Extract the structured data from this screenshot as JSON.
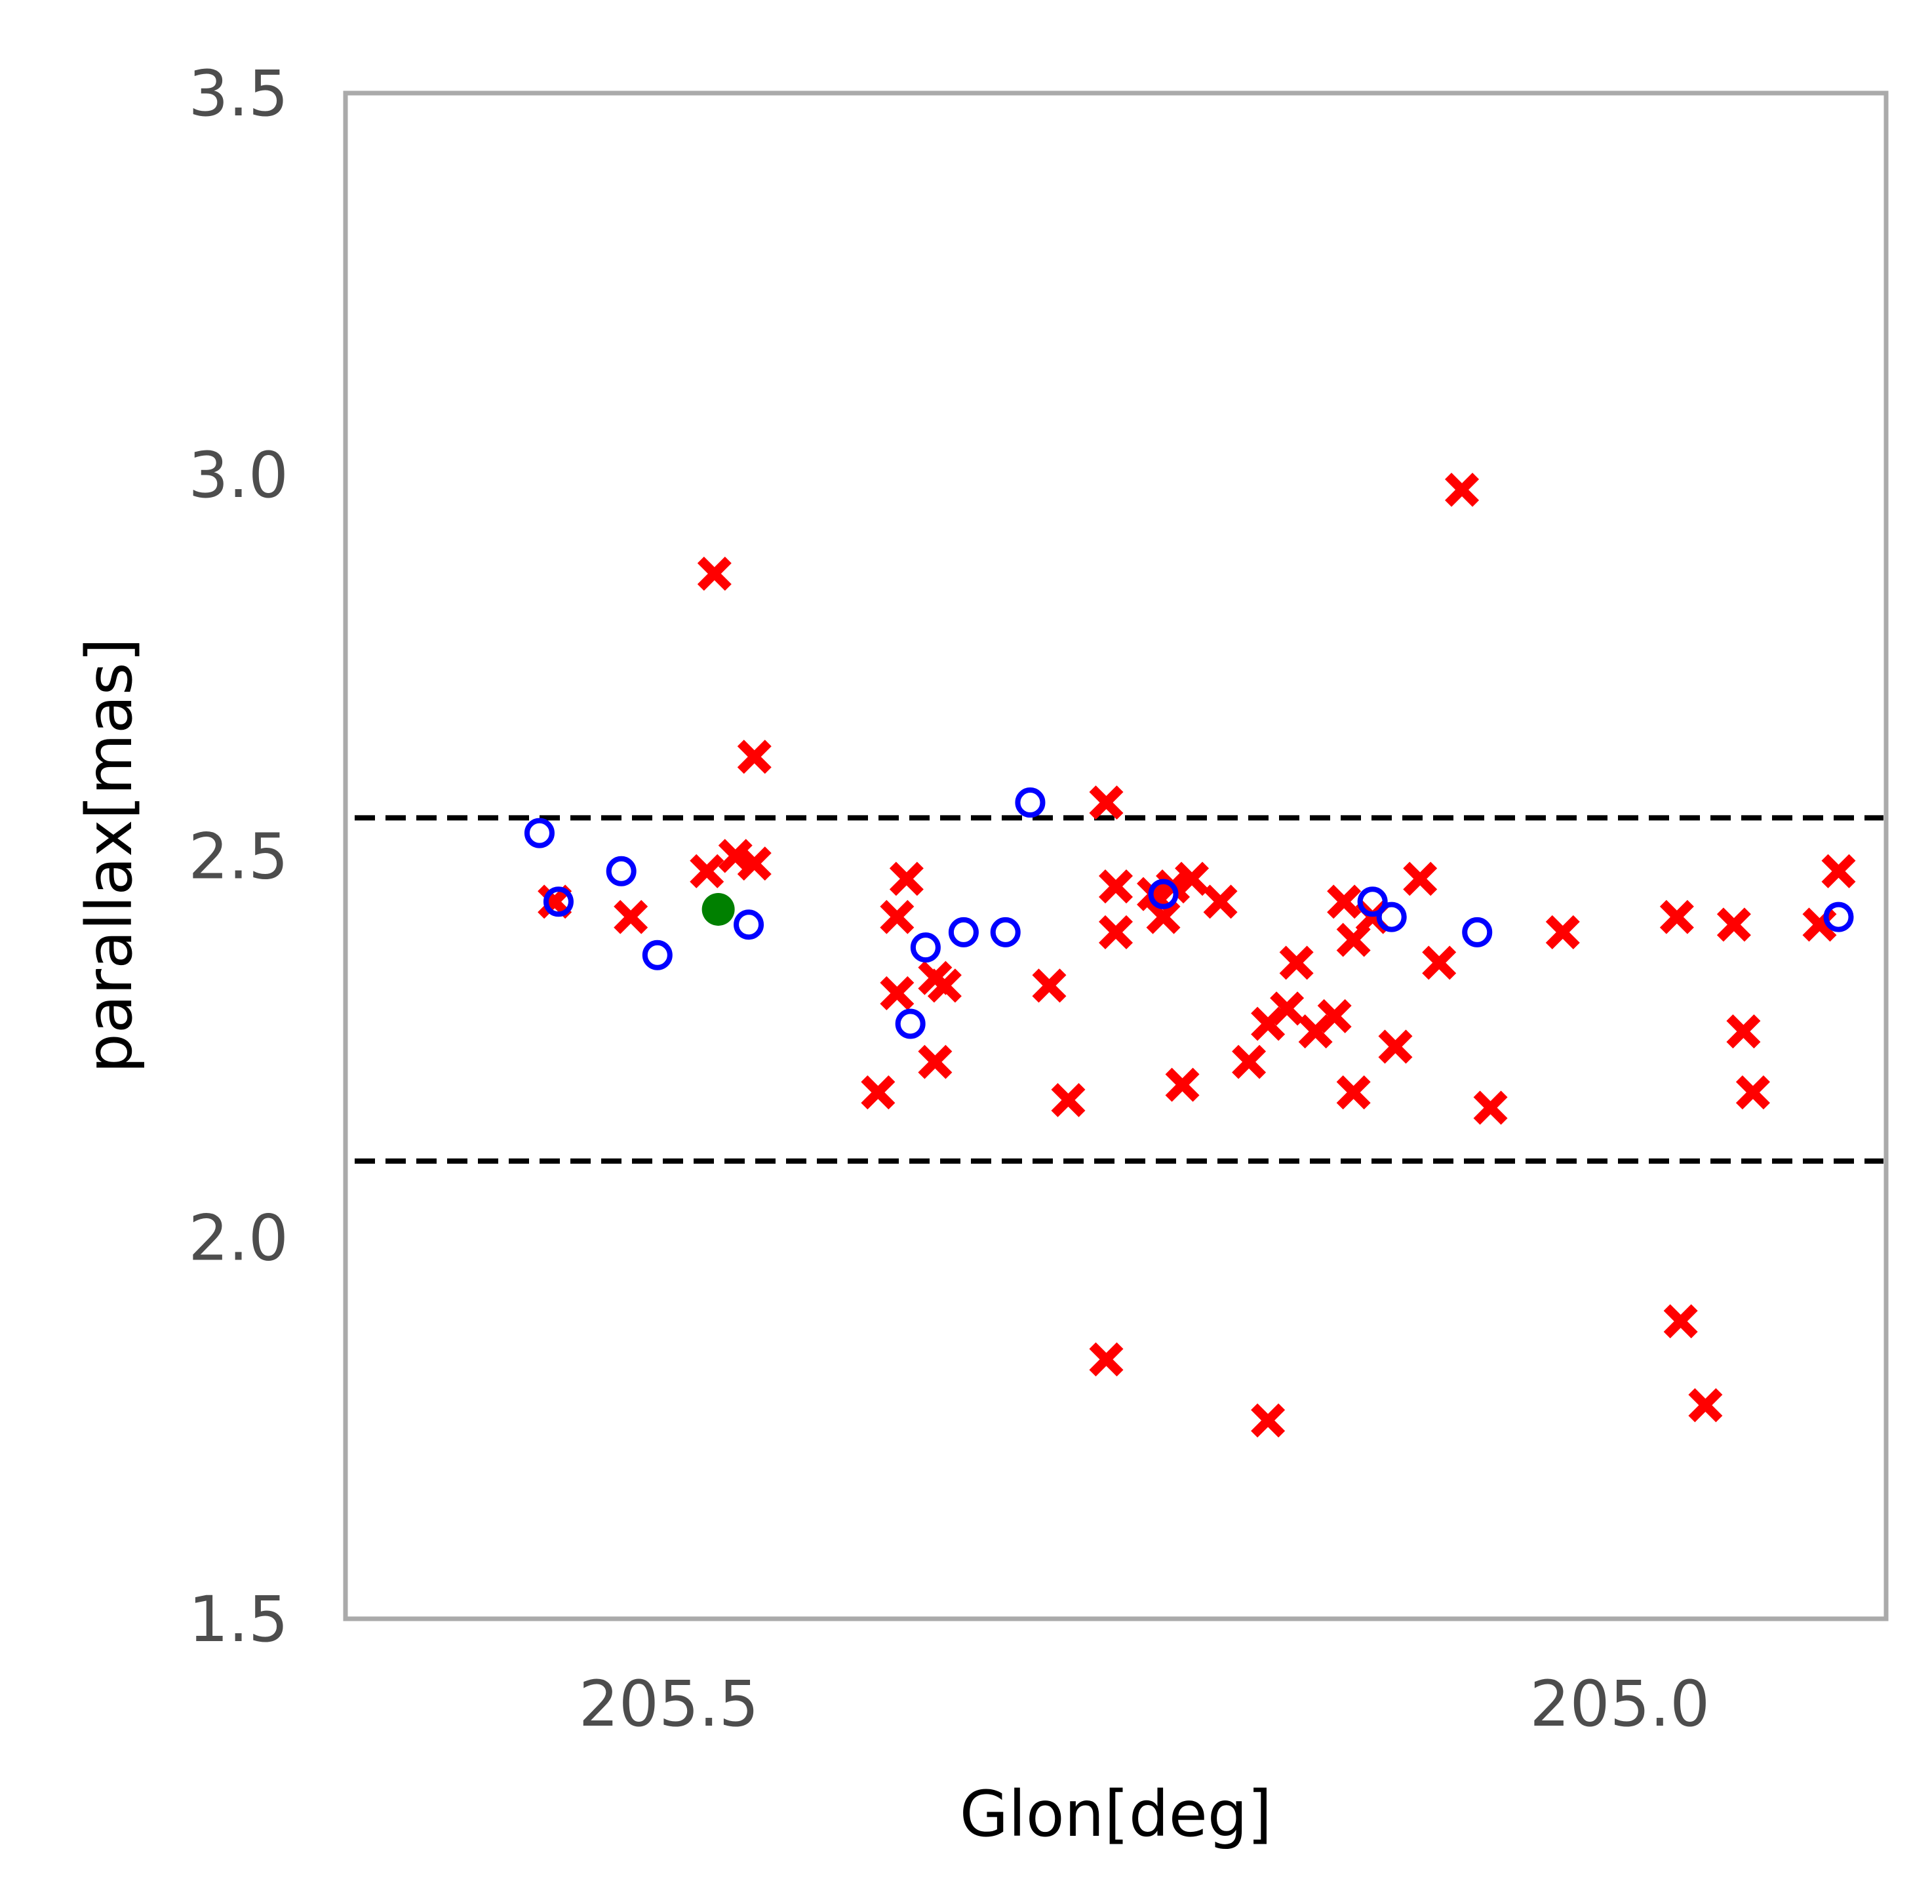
{
  "chart_data": {
    "type": "scatter",
    "title": "",
    "xlabel": "Glon[deg]",
    "ylabel": "parallax[mas]",
    "x_reversed": true,
    "xlim": [
      205.67,
      204.86
    ],
    "ylim": [
      1.5,
      3.5
    ],
    "x_ticks": [
      205.5,
      205.0
    ],
    "x_tick_labels": [
      "205.5",
      "205.0"
    ],
    "y_ticks": [
      1.5,
      2.0,
      2.5,
      3.0,
      3.5
    ],
    "y_tick_labels": [
      "1.5",
      "2.0",
      "2.5",
      "3.0",
      "3.5"
    ],
    "grid": false,
    "reference_lines": [
      {
        "y": 2.55,
        "style": "dashed",
        "color": "#000000"
      },
      {
        "y": 2.1,
        "style": "dashed",
        "color": "#000000"
      }
    ],
    "series": [
      {
        "marker": "x-filled",
        "color": "#ff0000",
        "points": [
          [
            205.56,
            2.44
          ],
          [
            205.52,
            2.42
          ],
          [
            205.476,
            2.87
          ],
          [
            205.48,
            2.48
          ],
          [
            205.465,
            2.5
          ],
          [
            205.455,
            2.49
          ],
          [
            205.455,
            2.63
          ],
          [
            205.38,
            2.42
          ],
          [
            205.375,
            2.47
          ],
          [
            205.38,
            2.32
          ],
          [
            205.36,
            2.34
          ],
          [
            205.355,
            2.33
          ],
          [
            205.39,
            2.19
          ],
          [
            205.36,
            2.23
          ],
          [
            205.3,
            2.33
          ],
          [
            205.29,
            2.18
          ],
          [
            205.27,
            2.57
          ],
          [
            205.265,
            2.46
          ],
          [
            205.265,
            2.4
          ],
          [
            205.27,
            1.84
          ],
          [
            205.245,
            2.45
          ],
          [
            205.24,
            2.42
          ],
          [
            205.235,
            2.46
          ],
          [
            205.225,
            2.47
          ],
          [
            205.21,
            2.44
          ],
          [
            205.23,
            2.2
          ],
          [
            205.195,
            2.23
          ],
          [
            205.185,
            2.28
          ],
          [
            205.175,
            2.3
          ],
          [
            205.17,
            2.36
          ],
          [
            205.16,
            2.27
          ],
          [
            205.15,
            2.29
          ],
          [
            205.145,
            2.44
          ],
          [
            205.14,
            2.39
          ],
          [
            205.14,
            2.19
          ],
          [
            205.13,
            2.42
          ],
          [
            205.118,
            2.25
          ],
          [
            205.105,
            2.47
          ],
          [
            205.095,
            2.36
          ],
          [
            205.185,
            1.76
          ],
          [
            205.083,
            2.98
          ],
          [
            205.068,
            2.17
          ],
          [
            205.03,
            2.4
          ],
          [
            204.97,
            2.42
          ],
          [
            204.968,
            1.89
          ],
          [
            204.94,
            2.41
          ],
          [
            204.935,
            2.27
          ],
          [
            204.93,
            2.19
          ],
          [
            204.955,
            1.78
          ],
          [
            204.895,
            2.41
          ],
          [
            204.885,
            2.48
          ]
        ]
      },
      {
        "marker": "open-circle",
        "color": "#0000ff",
        "points": [
          [
            205.568,
            2.53
          ],
          [
            205.558,
            2.44
          ],
          [
            205.525,
            2.48
          ],
          [
            205.506,
            2.37
          ],
          [
            205.458,
            2.41
          ],
          [
            205.373,
            2.28
          ],
          [
            205.365,
            2.38
          ],
          [
            205.345,
            2.4
          ],
          [
            205.323,
            2.4
          ],
          [
            205.31,
            2.57
          ],
          [
            205.24,
            2.45
          ],
          [
            205.13,
            2.44
          ],
          [
            205.12,
            2.42
          ],
          [
            205.075,
            2.4
          ],
          [
            204.885,
            2.42
          ]
        ]
      },
      {
        "marker": "filled-circle",
        "color": "#008000",
        "points": [
          [
            205.474,
            2.43
          ]
        ]
      }
    ]
  }
}
